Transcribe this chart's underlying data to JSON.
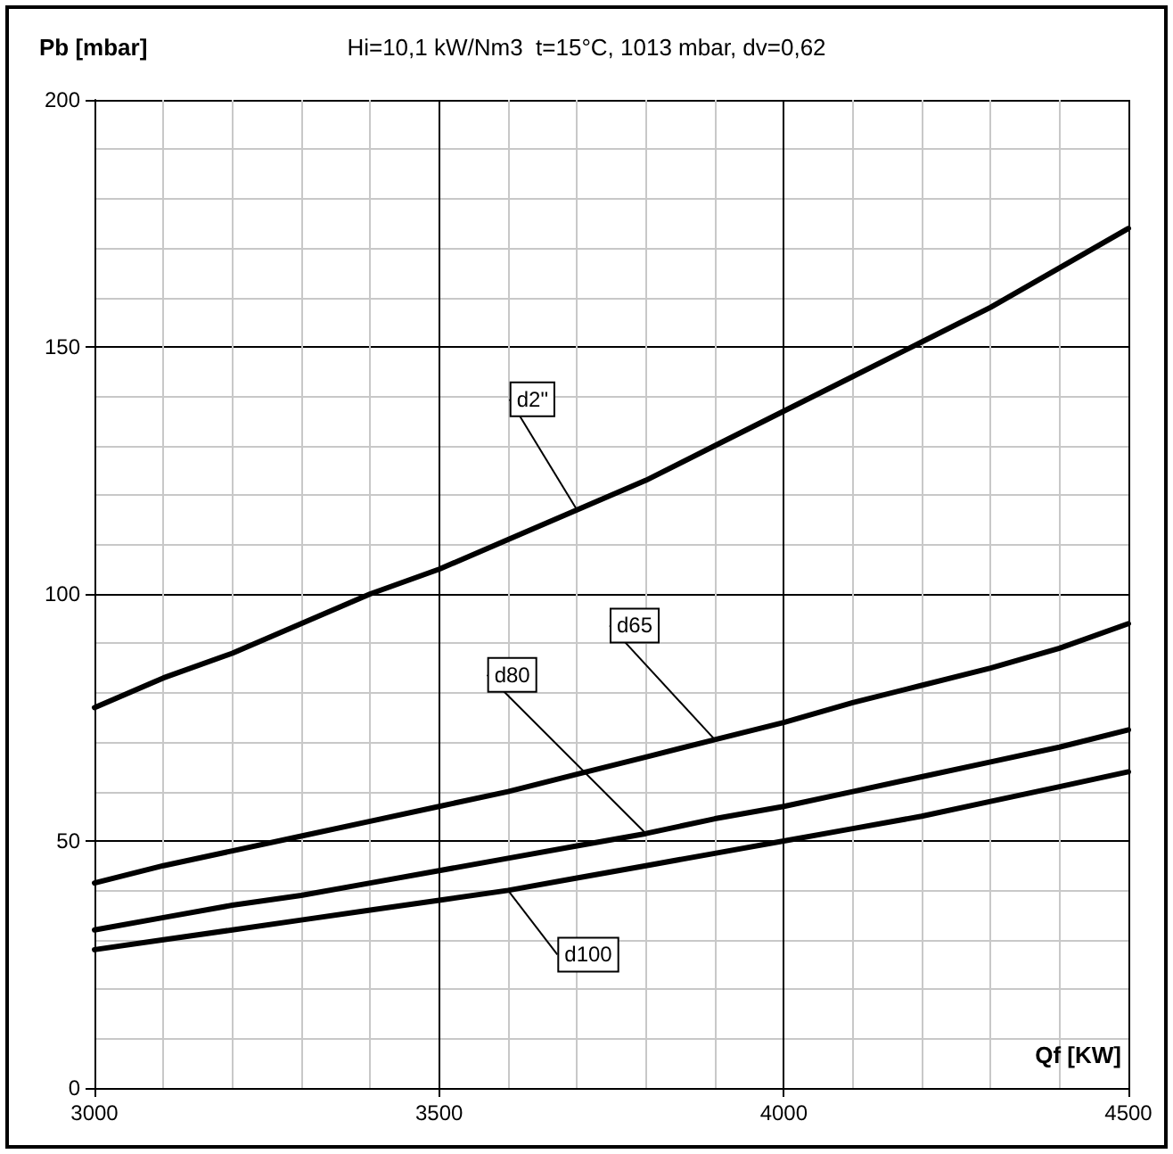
{
  "chart_data": {
    "type": "line",
    "title": "Hi=10,1 kW/Nm3  t=15°C, 1013 mbar, dv=0,62",
    "xlabel": "Qf [KW]",
    "ylabel": "Pb [mbar]",
    "x": [
      3000,
      3100,
      3200,
      3300,
      3400,
      3500,
      3600,
      3700,
      3800,
      3900,
      4000,
      4100,
      4200,
      4300,
      4400,
      4500
    ],
    "series": [
      {
        "name": "d2\"",
        "color": "#000000",
        "values": [
          77,
          83,
          88,
          94,
          100,
          105,
          111,
          117,
          123,
          130,
          137,
          144,
          151,
          158,
          166,
          174
        ]
      },
      {
        "name": "d65",
        "color": "#000000",
        "values": [
          41.5,
          45,
          48,
          51,
          54,
          57,
          60,
          63.5,
          67,
          70.5,
          74,
          78,
          81.5,
          85,
          89,
          94
        ]
      },
      {
        "name": "d80",
        "color": "#000000",
        "values": [
          32,
          34.5,
          37,
          39,
          41.5,
          44,
          46.5,
          49,
          51.5,
          54.5,
          57,
          60,
          63,
          66,
          69,
          72.5
        ]
      },
      {
        "name": "d100",
        "color": "#000000",
        "values": [
          28,
          30,
          32,
          34,
          36,
          38,
          40,
          42.5,
          45,
          47.5,
          50,
          52.5,
          55,
          58,
          61,
          64
        ]
      }
    ],
    "xlim": [
      3000,
      4500
    ],
    "xticks": [
      3000,
      3500,
      4000,
      4500
    ],
    "ylim": [
      0,
      200
    ],
    "yticks": [
      0,
      50,
      100,
      150,
      200
    ],
    "grid": true,
    "legend": false,
    "marker": "none",
    "line_style": "solid"
  }
}
